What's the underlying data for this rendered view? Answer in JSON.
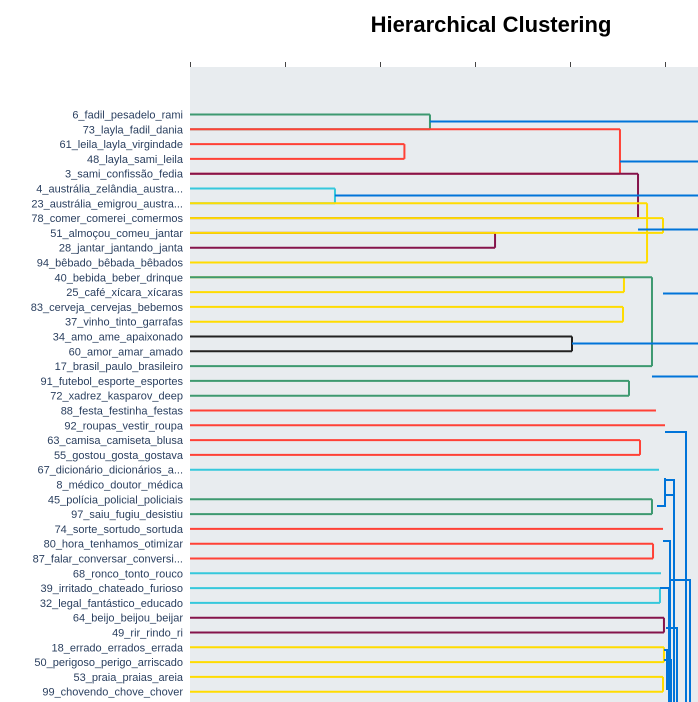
{
  "chart_data": {
    "type": "dendrogram",
    "title": "Hierarchical Clustering",
    "orientation": "leaves-left, root-right",
    "grid": false,
    "leaves": [
      "6_fadil_pesadelo_rami",
      "73_layla_fadil_dania",
      "61_leila_layla_virgindade",
      "48_layla_sami_leila",
      "3_sami_confissão_fedia",
      "4_austrália_zelândia_austra...",
      "23_austrália_emigrou_austra...",
      "78_comer_comerei_comermos",
      "51_almoçou_comeu_jantar",
      "28_jantar_jantando_janta",
      "94_bêbado_bêbada_bêbados",
      "40_bebida_beber_drinque",
      "25_café_xícara_xícaras",
      "83_cerveja_cervejas_bebemos",
      "37_vinho_tinto_garrafas",
      "34_amo_ame_apaixonado",
      "60_amor_amar_amado",
      "17_brasil_paulo_brasileiro",
      "91_futebol_esporte_esportes",
      "72_xadrez_kasparov_deep",
      "88_festa_festinha_festas",
      "92_roupas_vestir_roupa",
      "63_camisa_camiseta_blusa",
      "55_gostou_gosta_gostava",
      "67_dicionário_dicionários_a...",
      "8_médico_doutor_médica",
      "45_polícia_policial_policiais",
      "97_saiu_fugiu_desistiu",
      "74_sorte_sortudo_sortuda",
      "80_hora_tenhamos_otimizar",
      "87_falar_conversar_conversi...",
      "68_ronco_tonto_rouco",
      "39_irritado_chateado_furioso",
      "32_legal_fantástico_educado",
      "64_beijo_beijou_beijar",
      "49_rir_rindo_ri",
      "18_errado_errados_errada",
      "50_perigoso_perigo_arriscado",
      "53_praia_praias_areia",
      "99_chovendo_chove_chover"
    ],
    "links": [
      {
        "leaves": [
          0,
          1
        ],
        "height": 0.2526,
        "color": "#3D9970"
      },
      {
        "leaves": [
          2,
          3
        ],
        "height": 0.2257,
        "color": "#FF4136"
      },
      {
        "children": [
          1,
          4
        ],
        "height": 0.4526,
        "color": "#FF4136"
      },
      {
        "leaves": [
          5,
          6
        ],
        "height": 0.1526,
        "color": "#35C8DC"
      },
      {
        "leaves": [
          8,
          9
        ],
        "height": 0.3211,
        "color": "#85144B"
      },
      {
        "children": [
          7,
          4
        ],
        "height": 0.4716,
        "color": "#85144B"
      },
      {
        "leaves": [
          11,
          12
        ],
        "height": 0.4568,
        "color": "#FFDC00"
      },
      {
        "children": [
          10,
          6
        ],
        "height": 0.4811,
        "color": "#FFDC00"
      },
      {
        "leaves": [
          13,
          14
        ],
        "height": 0.4558,
        "color": "#FFDC00"
      },
      {
        "children": [
          7,
          8
        ],
        "height": 0.4979,
        "color": "#FFDC00"
      },
      {
        "leaves": [
          15,
          16
        ],
        "height": 0.4021,
        "color": "#222222"
      },
      {
        "leaves": [
          18,
          19
        ],
        "height": 0.4621,
        "color": "#3D9970"
      },
      {
        "children": [
          17,
          11
        ],
        "height": 0.4863,
        "color": "#3D9970"
      },
      {
        "leaves": [
          20
        ],
        "height": 0.4905,
        "color": "#FF4136"
      },
      {
        "leaves": [
          22,
          23
        ],
        "height": 0.4737,
        "color": "#FF4136"
      },
      {
        "leaves": [
          21
        ],
        "height": 0.5,
        "color": "#FF4136"
      },
      {
        "leaves": [
          24
        ],
        "height": 0.4937,
        "color": "#35C8DC"
      },
      {
        "leaves": [
          26,
          27
        ],
        "height": 0.4863,
        "color": "#3D9970"
      },
      {
        "leaves": [
          28
        ],
        "height": 0.4979,
        "color": "#FF4136"
      },
      {
        "leaves": [
          29,
          30
        ],
        "height": 0.4874,
        "color": "#FF4136"
      },
      {
        "leaves": [
          31
        ],
        "height": 0.4958,
        "color": "#35C8DC"
      },
      {
        "leaves": [
          32,
          33
        ],
        "height": 0.4947,
        "color": "#35C8DC"
      },
      {
        "leaves": [
          34,
          35
        ],
        "height": 0.4989,
        "color": "#85144B"
      },
      {
        "leaves": [
          36,
          37
        ],
        "height": 0.4989,
        "color": "#FFDC00"
      },
      {
        "leaves": [
          38,
          39
        ],
        "height": 0.4979,
        "color": "#FFDC00"
      }
    ],
    "root_color": "#0074D9"
  }
}
